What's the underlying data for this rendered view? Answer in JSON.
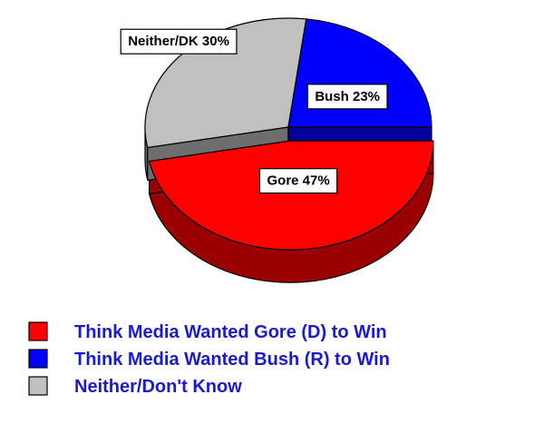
{
  "chart_data": {
    "type": "pie",
    "title": "",
    "slices": [
      {
        "label": "Gore 47%",
        "value": 47,
        "color": "#ff0000",
        "side": "#9a0000"
      },
      {
        "label": "Neither/DK 30%",
        "value": 30,
        "color": "#c0c0c0",
        "side": "#6e6e6e"
      },
      {
        "label": "Bush 23%",
        "value": 23,
        "color": "#0000ff",
        "side": "#00009a"
      }
    ],
    "legend": [
      {
        "label": "Think Media Wanted Gore (D) to Win",
        "color": "#ff0000"
      },
      {
        "label": "Think Media Wanted Bush (R) to Win",
        "color": "#0000ff"
      },
      {
        "label": "Neither/Don't Know",
        "color": "#c0c0c0"
      }
    ],
    "legend_position": "bottom-left",
    "style": "3d-exploded"
  }
}
